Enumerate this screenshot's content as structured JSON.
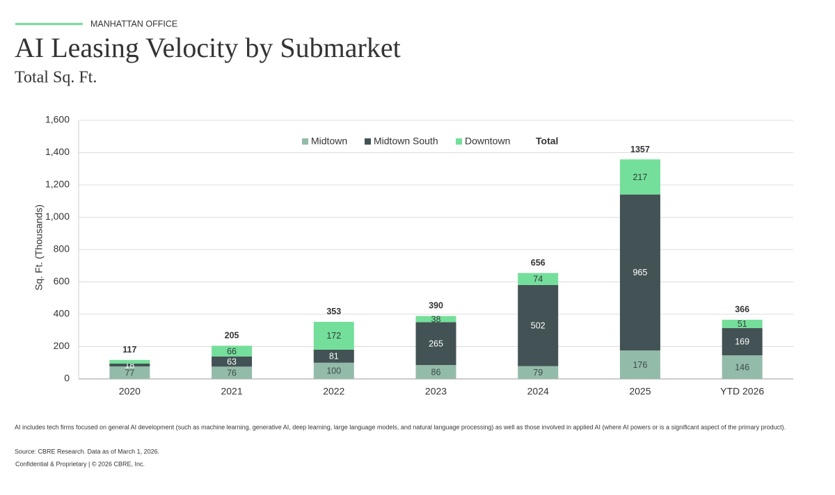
{
  "header": {
    "kicker": "MANHATTAN OFFICE",
    "title": "AI Leasing Velocity by Submarket",
    "subtitle": "Total Sq. Ft."
  },
  "chart_data": {
    "type": "stacked_bar",
    "y_label": "Sq. Ft. (Thousands)",
    "categories": [
      "2020",
      "2021",
      "2022",
      "2023",
      "2024",
      "2025",
      "YTD 2026"
    ],
    "series": [
      {
        "name": "Midtown",
        "color": "#93bba9",
        "label_color": "#3d4a4a",
        "values": [
          77,
          76,
          100,
          86,
          79,
          176,
          146
        ]
      },
      {
        "name": "Midtown South",
        "color": "#435254",
        "label_color": "#ffffff",
        "values": [
          18,
          63,
          81,
          265,
          502,
          965,
          169
        ]
      },
      {
        "name": "Downtown",
        "color": "#74df9a",
        "label_color": "#2f3b3b",
        "values": [
          22,
          66,
          172,
          38,
          74,
          217,
          51
        ],
        "value_labels": [
          null,
          "66",
          "172",
          "38",
          "74",
          "217",
          "51"
        ]
      }
    ],
    "total_label": "Total",
    "totals": [
      117,
      205,
      353,
      390,
      656,
      1357,
      366
    ],
    "ylim": [
      0,
      1600
    ],
    "yticks": [
      0,
      200,
      400,
      600,
      800,
      {
        "value": 1000,
        "label": "1,000"
      },
      {
        "value": 1200,
        "label": "1,200"
      },
      {
        "value": 1400,
        "label": "1,400"
      },
      {
        "value": 1600,
        "label": "1,600"
      }
    ],
    "grid": true
  },
  "footer": {
    "note": "AI includes tech firms focused on general AI development (such as machine learning, generative AI, deep learning, large language models, and natural language processing) as well as those involved in applied AI (where AI powers or is a significant aspect of the primary product).",
    "source": "Source: CBRE Research. Data as of March 1, 2026.",
    "copyright": "Confidential & Proprietary | © 2026 CBRE, Inc."
  }
}
